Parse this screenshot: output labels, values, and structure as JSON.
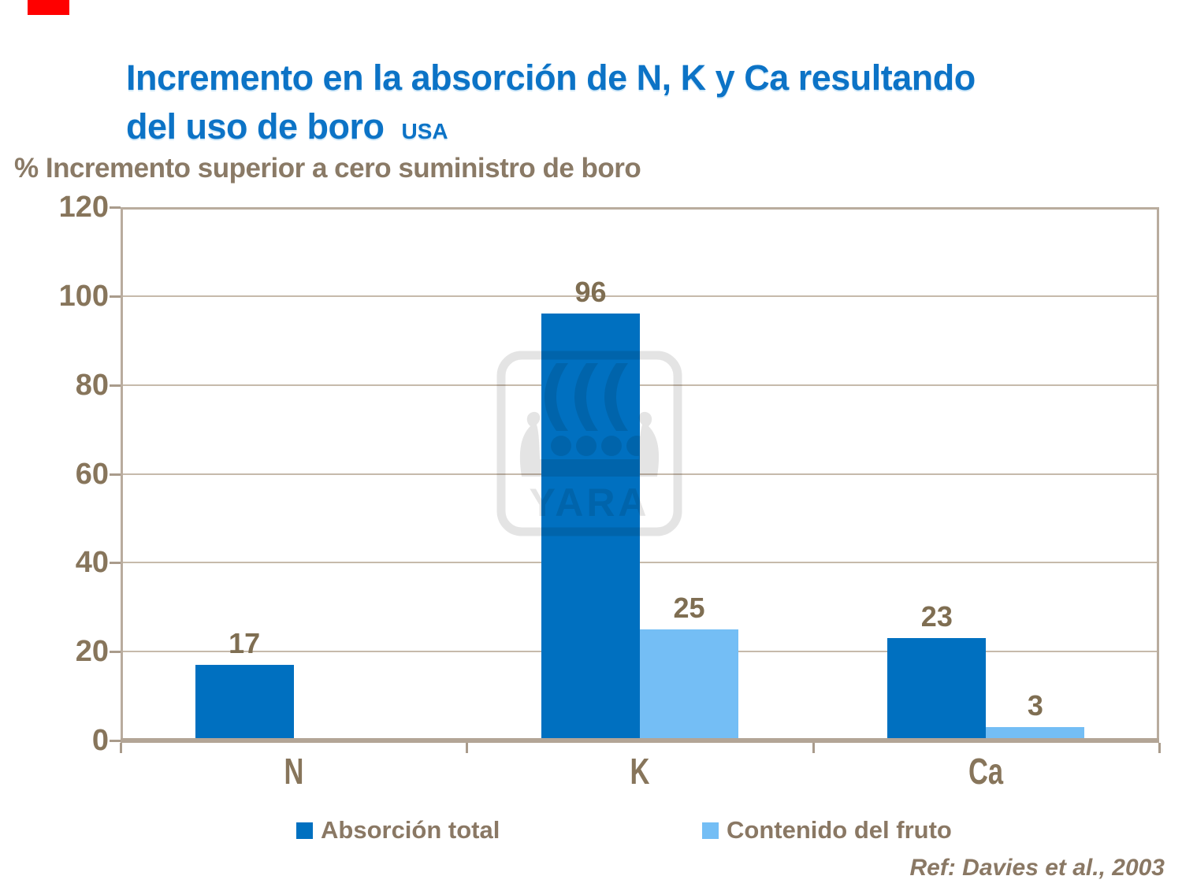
{
  "header": {
    "title_line1": "Incremento en la absorción de N, K y Ca resultando",
    "title_line2": "del uso de boro",
    "region": "USA"
  },
  "chart_data": {
    "type": "bar",
    "title": "Incremento en la absorción de N, K y Ca resultando del uso de boro (USA)",
    "ylabel": "% Incremento superior a cero suministro de boro",
    "xlabel": "",
    "categories": [
      "N",
      "K",
      "Ca"
    ],
    "series": [
      {
        "name": "Absorción total",
        "color": "#0070C0",
        "values": [
          17,
          96,
          23
        ]
      },
      {
        "name": "Contenido del fruto",
        "color": "#74BEF5",
        "values": [
          null,
          25,
          3
        ]
      }
    ],
    "ylim": [
      0,
      120
    ],
    "yticks": [
      0,
      20,
      40,
      60,
      80,
      100,
      120
    ],
    "grid": true,
    "value_labels": true,
    "legend_position": "bottom"
  },
  "watermark": {
    "text": "YARA"
  },
  "reference": "Ref: Davies et al., 2003",
  "colors": {
    "title_blue": "#0C73C6",
    "axis_text_brown": "#87755B",
    "grid_brown": "#C6BAAB",
    "border_brown": "#B9AC9E",
    "red_marker": "#FF0000",
    "watermark_gray": "#E4E4E4"
  }
}
